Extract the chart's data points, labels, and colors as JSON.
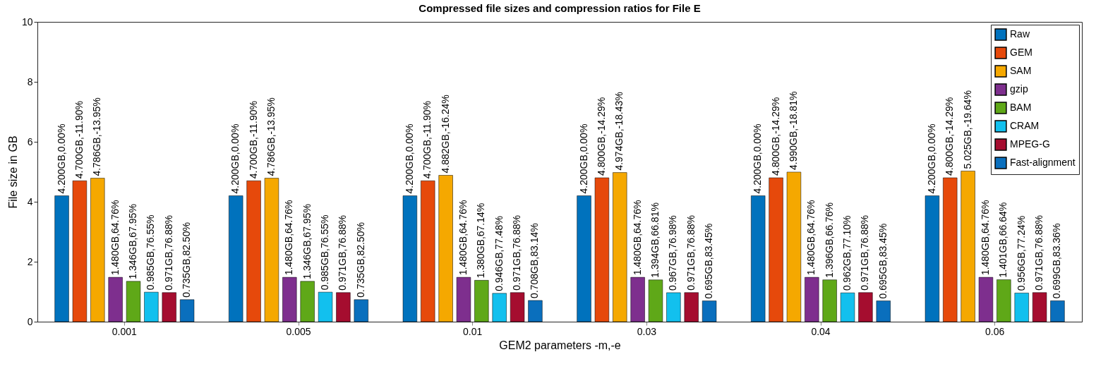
{
  "chart_data": {
    "type": "bar",
    "title": "Compressed file sizes and compression ratios for File E",
    "xlabel": "GEM2 parameters -m,-e",
    "ylabel": "File size in GB",
    "categories": [
      "0.001",
      "0.005",
      "0.01",
      "0.03",
      "0.04",
      "0.06"
    ],
    "ylim": [
      0,
      10
    ],
    "yticks": [
      0,
      2,
      4,
      6,
      8,
      10
    ],
    "grid": false,
    "legend": "top right",
    "series": [
      {
        "name": "Raw",
        "color": "#0072bd",
        "values": [
          4.2,
          4.2,
          4.2,
          4.2,
          4.2,
          4.2
        ],
        "value_labels": [
          "4.200GB,0.00%",
          "4.200GB,0.00%",
          "4.200GB,0.00%",
          "4.200GB,0.00%",
          "4.200GB,0.00%",
          "4.200GB,0.00%"
        ]
      },
      {
        "name": "GEM",
        "color": "#e6490b",
        "values": [
          4.7,
          4.7,
          4.7,
          4.8,
          4.8,
          4.8
        ],
        "value_labels": [
          "4.700GB,-11.90%",
          "4.700GB,-11.90%",
          "4.700GB,-11.90%",
          "4.800GB,-14.29%",
          "4.800GB,-14.29%",
          "4.800GB,-14.29%"
        ]
      },
      {
        "name": "SAM",
        "color": "#f5a800",
        "values": [
          4.786,
          4.786,
          4.882,
          4.974,
          4.99,
          5.025
        ],
        "value_labels": [
          "4.786GB,-13.95%",
          "4.786GB,-13.95%",
          "4.882GB,-16.24%",
          "4.974GB,-18.43%",
          "4.990GB,-18.81%",
          "5.025GB,-19.64%"
        ]
      },
      {
        "name": "gzip",
        "color": "#7e2f8e",
        "values": [
          1.48,
          1.48,
          1.48,
          1.48,
          1.48,
          1.48
        ],
        "value_labels": [
          "1.480GB,64.76%",
          "1.480GB,64.76%",
          "1.480GB,64.76%",
          "1.480GB,64.76%",
          "1.480GB,64.76%",
          "1.480GB,64.76%"
        ]
      },
      {
        "name": "BAM",
        "color": "#5fa818",
        "values": [
          1.346,
          1.346,
          1.38,
          1.394,
          1.396,
          1.401
        ],
        "value_labels": [
          "1.346GB,67.95%",
          "1.346GB,67.95%",
          "1.380GB,67.14%",
          "1.394GB,66.81%",
          "1.396GB,66.76%",
          "1.401GB,66.64%"
        ]
      },
      {
        "name": "CRAM",
        "color": "#12c0ee",
        "values": [
          0.985,
          0.985,
          0.946,
          0.967,
          0.962,
          0.956
        ],
        "value_labels": [
          "0.985GB,76.55%",
          "0.985GB,76.55%",
          "0.946GB,77.48%",
          "0.967GB,76.98%",
          "0.962GB,77.10%",
          "0.956GB,77.24%"
        ]
      },
      {
        "name": "MPEG-G",
        "color": "#a50d2f",
        "values": [
          0.971,
          0.971,
          0.971,
          0.971,
          0.971,
          0.971
        ],
        "value_labels": [
          "0.971GB,76.88%",
          "0.971GB,76.88%",
          "0.971GB,76.88%",
          "0.971GB,76.88%",
          "0.971GB,76.88%",
          "0.971GB,76.88%"
        ]
      },
      {
        "name": "Fast-alignment",
        "color": "#0a6fbd",
        "values": [
          0.735,
          0.735,
          0.708,
          0.695,
          0.695,
          0.699
        ],
        "value_labels": [
          "0.735GB,82.50%",
          "0.735GB,82.50%",
          "0.708GB,83.14%",
          "0.695GB,83.45%",
          "0.695GB,83.45%",
          "0.699GB,83.36%"
        ]
      }
    ]
  }
}
